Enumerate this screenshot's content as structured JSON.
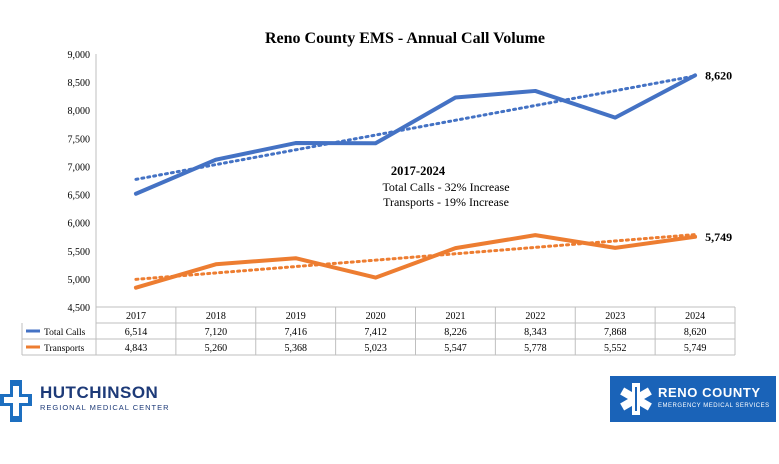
{
  "chart_data": {
    "type": "line",
    "title": "Reno County EMS - Annual Call Volume",
    "categories": [
      "2017",
      "2018",
      "2019",
      "2020",
      "2021",
      "2022",
      "2023",
      "2024"
    ],
    "ylim": [
      4500,
      9000
    ],
    "yticks": [
      "4,500",
      "5,000",
      "5,500",
      "6,000",
      "6,500",
      "7,000",
      "7,500",
      "8,000",
      "8,500",
      "9,000"
    ],
    "series": [
      {
        "name": "Total Calls",
        "color": "#4472c4",
        "values": [
          6514,
          7120,
          7416,
          7412,
          8226,
          8343,
          7868,
          8620
        ],
        "labels": [
          "6,514",
          "7,120",
          "7,416",
          "7,412",
          "8,226",
          "8,343",
          "7,868",
          "8,620"
        ],
        "end_label": "8,620",
        "trendline": true
      },
      {
        "name": "Transports",
        "color": "#ed7d31",
        "values": [
          4843,
          5260,
          5368,
          5023,
          5547,
          5778,
          5552,
          5749
        ],
        "labels": [
          "4,843",
          "5,260",
          "5,368",
          "5,023",
          "5,547",
          "5,778",
          "5,552",
          "5,749"
        ],
        "end_label": "5,749",
        "trendline": true
      }
    ],
    "annotation": {
      "heading": "2017-2024",
      "line1": "Total Calls - 32% Increase",
      "line2": "Transports - 19% Increase"
    },
    "legend": "data-table-bottom"
  },
  "logos": {
    "left_name": "HUTCHINSON",
    "left_sub": "REGIONAL MEDICAL CENTER",
    "left_color": "#1d3a78",
    "right_name": "RENO COUNTY",
    "right_sub": "EMERGENCY MEDICAL SERVICES",
    "right_color": "#1a63b8"
  }
}
